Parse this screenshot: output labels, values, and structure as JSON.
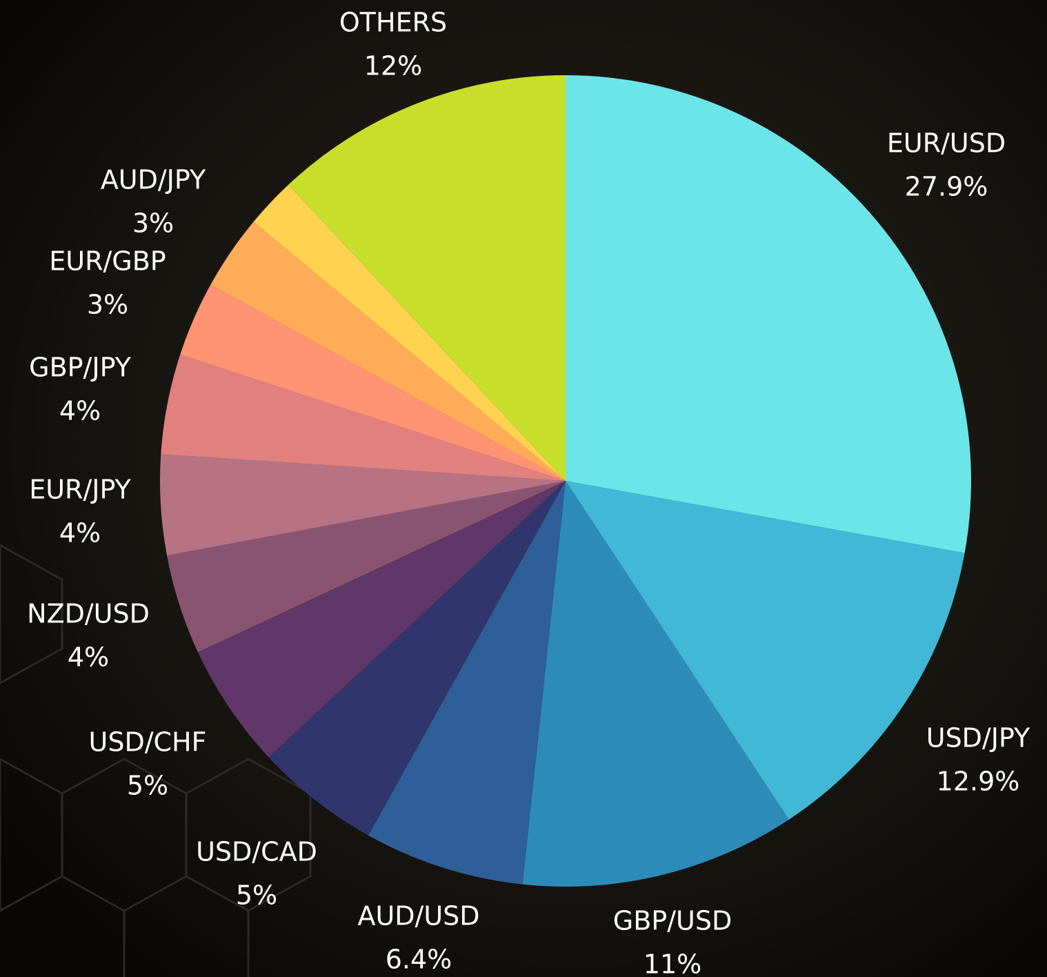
{
  "chart_data": {
    "type": "pie",
    "categories": [
      "EUR/USD",
      "USD/JPY",
      "GBP/USD",
      "AUD/USD",
      "USD/CAD",
      "USD/CHF",
      "NZD/USD",
      "EUR/JPY",
      "GBP/JPY",
      "EUR/GBP",
      "AUD/JPY",
      null,
      "OTHERS"
    ],
    "values": [
      27.9,
      12.9,
      11,
      6.4,
      5,
      5,
      4,
      4,
      4,
      3,
      3,
      2,
      12
    ],
    "value_labels": [
      "27.9%",
      "12.9%",
      "11%",
      "6.4%",
      "5%",
      "5%",
      "4%",
      "4%",
      "4%",
      "3%",
      "3%",
      null,
      "12%"
    ],
    "colors": [
      "#6ce5e8",
      "#41b8d5",
      "#2d8bba",
      "#2f5f98",
      "#31356e",
      "#5f3768",
      "#8a5471",
      "#b77283",
      "#e0817f",
      "#ff9373",
      "#ffab57",
      "#ffd350",
      "#c7df2a"
    ]
  }
}
